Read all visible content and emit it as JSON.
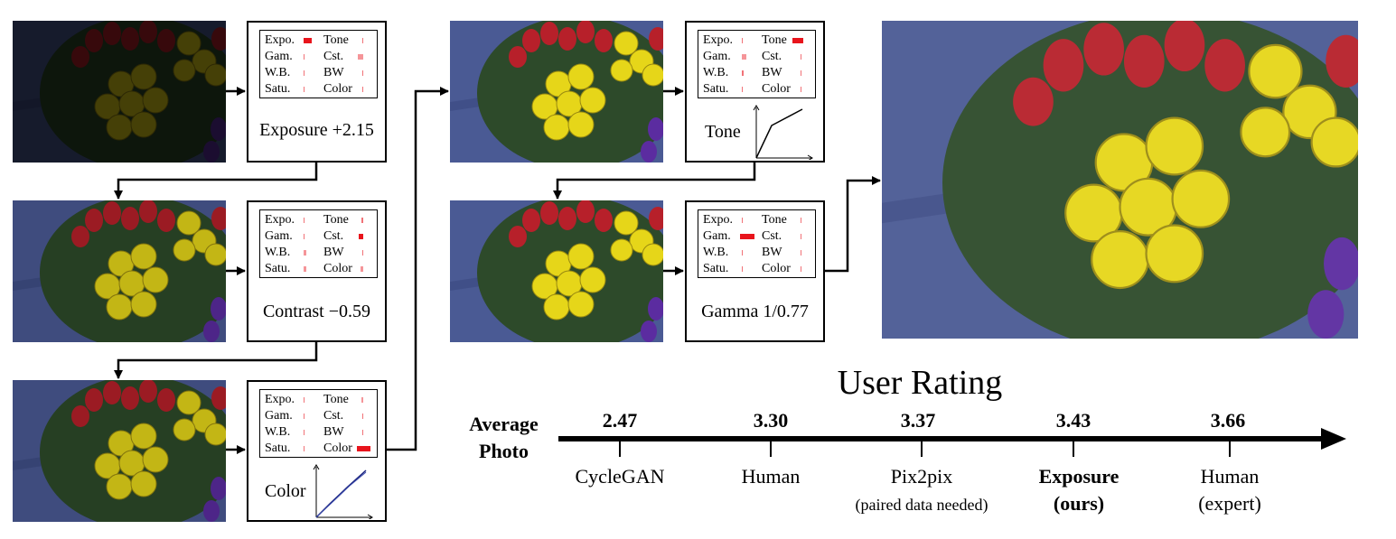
{
  "figure": {
    "steps": [
      {
        "controls": [
          "Expo.",
          "Tone",
          "Gam.",
          "Cst.",
          "W.B.",
          "BW",
          "Satu.",
          "Color"
        ],
        "caption": "Exposure +2.15",
        "curve_label": ""
      },
      {
        "controls": [
          "Expo.",
          "Tone",
          "Gam.",
          "Cst.",
          "W.B.",
          "BW",
          "Satu.",
          "Color"
        ],
        "caption": "Contrast −0.59",
        "curve_label": ""
      },
      {
        "controls": [
          "Expo.",
          "Tone",
          "Gam.",
          "Cst.",
          "W.B.",
          "BW",
          "Satu.",
          "Color"
        ],
        "caption": "",
        "curve_label": "Color"
      },
      {
        "controls": [
          "Expo.",
          "Tone",
          "Gam.",
          "Cst.",
          "W.B.",
          "BW",
          "Satu.",
          "Color"
        ],
        "caption": "",
        "curve_label": "Tone"
      },
      {
        "controls": [
          "Expo.",
          "Tone",
          "Gam.",
          "Cst.",
          "W.B.",
          "BW",
          "Satu.",
          "Color"
        ],
        "caption": "Gamma 1/0.77",
        "curve_label": ""
      }
    ]
  },
  "rating": {
    "title": "User Rating",
    "baseline_label": "Average Photo",
    "entries": [
      {
        "value": "2.47",
        "name": "CycleGAN",
        "name2": "",
        "bold": false
      },
      {
        "value": "3.30",
        "name": "Human",
        "name2": "",
        "bold": false
      },
      {
        "value": "3.37",
        "name": "Pix2pix",
        "name2": "(paired data needed)",
        "bold": false
      },
      {
        "value": "3.43",
        "name": "Exposure",
        "name2": "(ours)",
        "bold": true
      },
      {
        "value": "3.66",
        "name": "Human",
        "name2": "(expert)",
        "bold": false
      }
    ]
  },
  "colors": {
    "accent": "#e8141c",
    "curve": "#1a237e"
  }
}
